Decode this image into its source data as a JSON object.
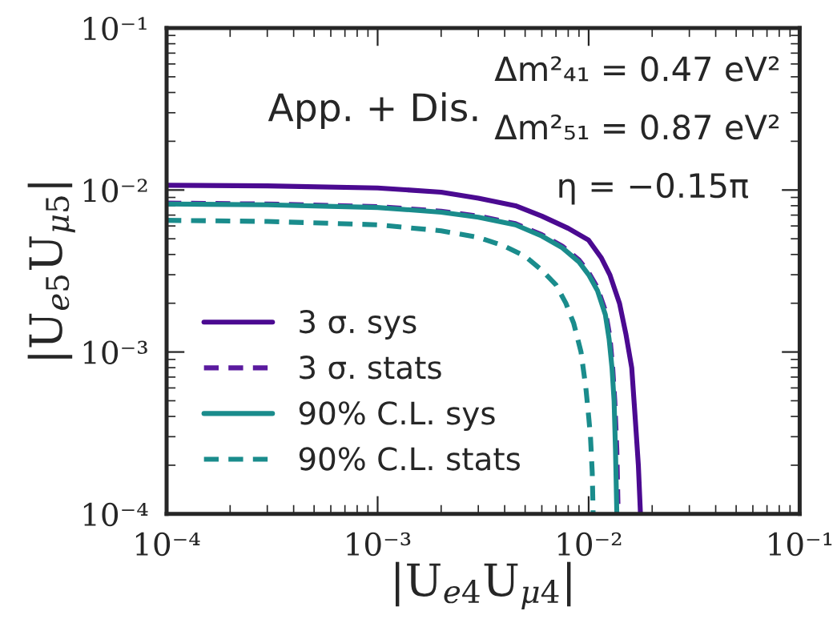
{
  "chart_data": {
    "type": "line",
    "xlabel": "|U$_{e4}$U$_{μ4}$|",
    "ylabel": "|U$_{e5}$U$_{μ5}$|",
    "log": "xy",
    "xlim": [
      0.0001,
      0.1
    ],
    "ylim": [
      0.0001,
      0.1
    ],
    "xticks": [
      {
        "value": 0.0001,
        "label": "10⁻⁴"
      },
      {
        "value": 0.001,
        "label": "10⁻³"
      },
      {
        "value": 0.01,
        "label": "10⁻²"
      },
      {
        "value": 0.1,
        "label": "10⁻¹"
      }
    ],
    "yticks": [
      {
        "value": 0.0001,
        "label": "10⁻⁴"
      },
      {
        "value": 0.001,
        "label": "10⁻³"
      },
      {
        "value": 0.01,
        "label": "10⁻²"
      },
      {
        "value": 0.1,
        "label": "10⁻¹"
      }
    ],
    "legend": "bottom left",
    "grid": false,
    "marker": "none",
    "annotations": [
      "App. + Dis.",
      "Δm²₄₁ = 0.47 eV²",
      "Δm²₅₁ = 0.87 eV²",
      "η = −0.15π"
    ],
    "series": [
      {
        "name": "3 σ. sys",
        "color": "#4b0a91",
        "line_style": "solid",
        "x": [
          0.0001,
          0.0003,
          0.001,
          0.002,
          0.003,
          0.0045,
          0.006,
          0.008,
          0.01,
          0.0115,
          0.0126,
          0.014,
          0.015,
          0.016,
          0.0166,
          0.0172,
          0.0176
        ],
        "values": [
          0.0107,
          0.0106,
          0.0103,
          0.0097,
          0.0089,
          0.008,
          0.0069,
          0.0058,
          0.0049,
          0.0038,
          0.003,
          0.002,
          0.0013,
          0.0008,
          0.0004,
          0.0002,
          0.0001
        ]
      },
      {
        "name": "3 σ. stats",
        "color": "#5a1a9e",
        "line_style": "dashed",
        "x": [
          0.0001,
          0.0003,
          0.001,
          0.002,
          0.003,
          0.0045,
          0.006,
          0.0075,
          0.009,
          0.01,
          0.011,
          0.012,
          0.0126,
          0.013,
          0.0133,
          0.0136,
          0.0138
        ],
        "values": [
          0.0083,
          0.0082,
          0.0079,
          0.0074,
          0.0069,
          0.0062,
          0.0053,
          0.0045,
          0.0037,
          0.0031,
          0.0025,
          0.0018,
          0.00125,
          0.0008,
          0.0005,
          0.00025,
          0.0001
        ]
      },
      {
        "name": "90% C.L. sys",
        "color": "#1a8c8c",
        "line_style": "solid",
        "x": [
          0.0001,
          0.0003,
          0.001,
          0.002,
          0.003,
          0.0045,
          0.006,
          0.0075,
          0.009,
          0.01,
          0.011,
          0.012,
          0.0125,
          0.0129,
          0.0132,
          0.0134,
          0.0136
        ],
        "values": [
          0.0082,
          0.0081,
          0.0078,
          0.0073,
          0.0068,
          0.0061,
          0.0052,
          0.0044,
          0.0036,
          0.003,
          0.0024,
          0.0017,
          0.0012,
          0.0008,
          0.0005,
          0.00025,
          0.0001
        ]
      },
      {
        "name": "90% C.L. stats",
        "color": "#1a8c8c",
        "line_style": "dashed",
        "x": [
          0.0001,
          0.0003,
          0.001,
          0.002,
          0.003,
          0.004,
          0.005,
          0.006,
          0.007,
          0.0078,
          0.0085,
          0.0092,
          0.0097,
          0.01,
          0.0102,
          0.0104,
          0.0105
        ],
        "values": [
          0.0065,
          0.0064,
          0.0061,
          0.0056,
          0.0051,
          0.0045,
          0.0039,
          0.0032,
          0.0026,
          0.002,
          0.0015,
          0.001,
          0.0006,
          0.0004,
          0.0003,
          0.00018,
          0.0001
        ]
      }
    ]
  }
}
